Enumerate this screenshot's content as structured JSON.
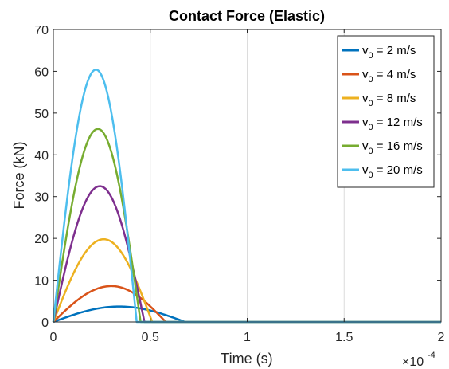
{
  "chart_data": {
    "type": "line",
    "title": "Contact Force (Elastic)",
    "xlabel": "Time (s)",
    "ylabel": "Force (kN)",
    "x_exponent_label": "×10",
    "x_exponent": "-4",
    "xlim": [
      0,
      2
    ],
    "ylim": [
      0,
      70
    ],
    "x_ticks": [
      "0",
      "0.5",
      "1",
      "1.5",
      "2"
    ],
    "y_ticks": [
      "0",
      "10",
      "20",
      "30",
      "40",
      "50",
      "60",
      "70"
    ],
    "grid": true,
    "legend_position": "top-right",
    "series": [
      {
        "name_prefix": "v",
        "name_sub": "0",
        "name_suffix": " = 2 m/s",
        "color": "#0072BD",
        "peak_x": 0.34,
        "peak_y": 3.7,
        "end_x": 0.68
      },
      {
        "name_prefix": "v",
        "name_sub": "0",
        "name_suffix": " = 4 m/s",
        "color": "#D95319",
        "peak_x": 0.3,
        "peak_y": 8.6,
        "end_x": 0.58
      },
      {
        "name_prefix": "v",
        "name_sub": "0",
        "name_suffix": " = 8 m/s",
        "color": "#EDB120",
        "peak_x": 0.26,
        "peak_y": 19.8,
        "end_x": 0.51
      },
      {
        "name_prefix": "v",
        "name_sub": "0",
        "name_suffix": " = 12 m/s",
        "color": "#7E2F8E",
        "peak_x": 0.24,
        "peak_y": 32.5,
        "end_x": 0.47
      },
      {
        "name_prefix": "v",
        "name_sub": "0",
        "name_suffix": " = 16 m/s",
        "color": "#77AC30",
        "peak_x": 0.23,
        "peak_y": 46.2,
        "end_x": 0.45
      },
      {
        "name_prefix": "v",
        "name_sub": "0",
        "name_suffix": " = 20 m/s",
        "color": "#4DBEEE",
        "peak_x": 0.22,
        "peak_y": 60.4,
        "end_x": 0.43
      }
    ]
  }
}
